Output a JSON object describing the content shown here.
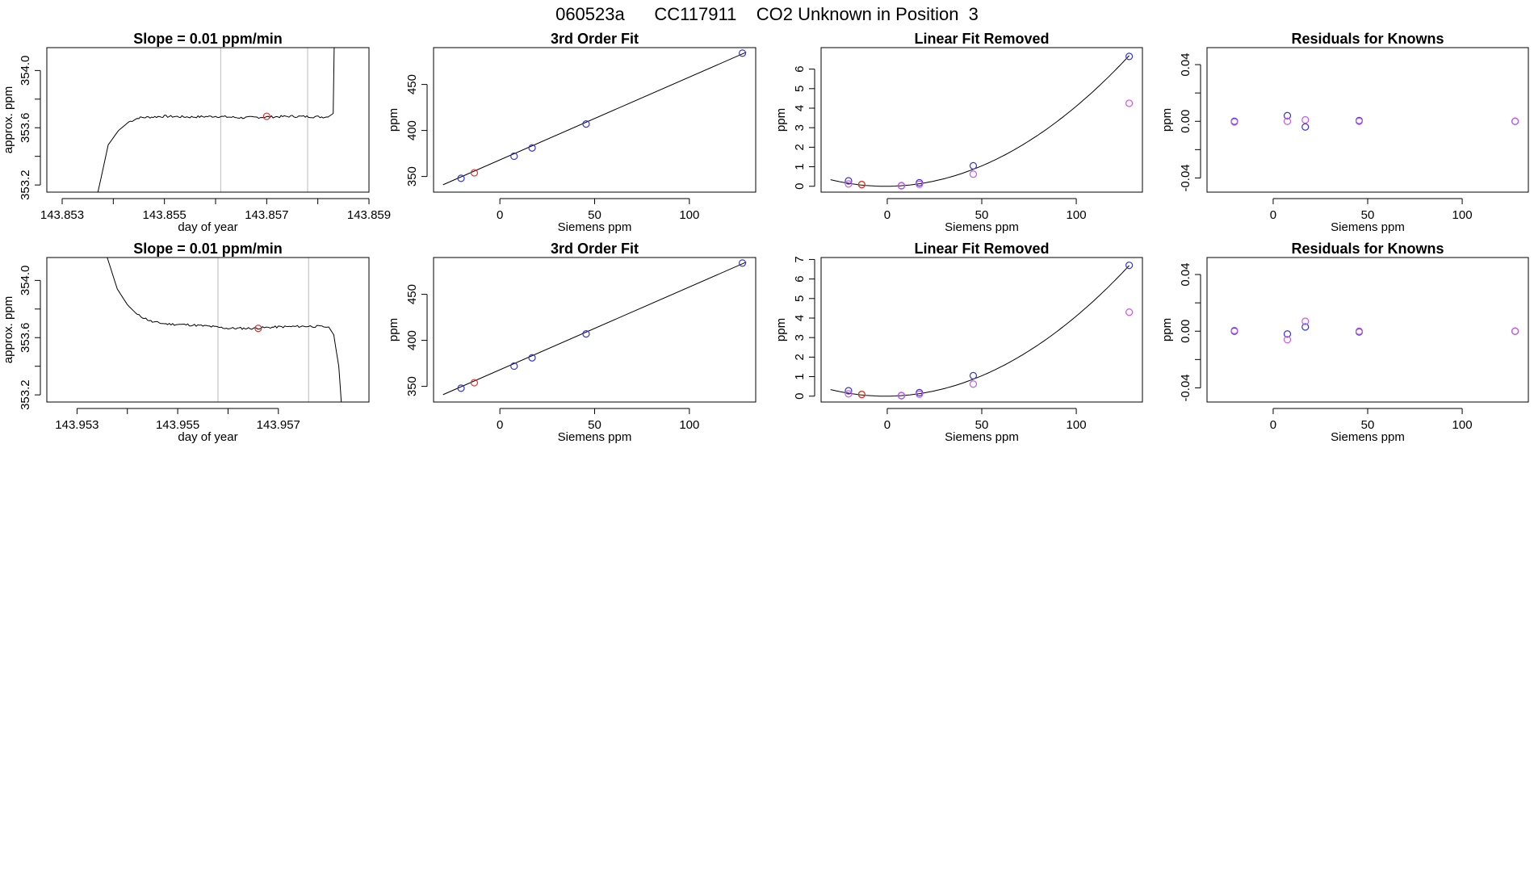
{
  "page_title": "060523a      CC117911    CO2 Unknown in Position  3",
  "colors": {
    "line": "#000000",
    "known_blue": "#3333dd",
    "unknown_red": "#e03030",
    "known_magenta": "#cc55ee",
    "unknown_orange": "#d08020",
    "vline": "#bbbbbb"
  },
  "chart_data": [
    {
      "type": "line",
      "title": "Slope =  0.01  ppm/min",
      "xlabel": "day of year",
      "ylabel": "approx. ppm",
      "xlim": [
        143.8527,
        143.859
      ],
      "ylim": [
        353.15,
        354.16
      ],
      "xticks": [
        143.853,
        143.855,
        143.857,
        143.859
      ],
      "xtick_labels": [
        "143.853",
        "143.855",
        "143.857",
        "143.859"
      ],
      "xticks_minor": [
        143.854,
        143.856,
        143.858
      ],
      "yticks": [
        353.2,
        353.6,
        354.0
      ],
      "ytick_labels": [
        "353.2",
        "353.6",
        "354.0"
      ],
      "yticks_minor": [
        353.4,
        353.8
      ],
      "vlines": [
        143.8561,
        143.8578
      ],
      "trace_points": [
        [
          143.8537,
          353.15
        ],
        [
          143.8539,
          353.48
        ],
        [
          143.8541,
          353.58
        ],
        [
          143.8543,
          353.64
        ],
        [
          143.8545,
          353.67
        ],
        [
          143.855,
          353.68
        ],
        [
          143.8555,
          353.675
        ],
        [
          143.856,
          353.68
        ],
        [
          143.8565,
          353.67
        ],
        [
          143.857,
          353.675
        ],
        [
          143.8575,
          353.68
        ],
        [
          143.8582,
          353.675
        ],
        [
          143.8583,
          353.7
        ],
        [
          143.85832,
          354.16
        ]
      ],
      "trace_noise": 0.008,
      "marker": {
        "x": 143.857,
        "y": 353.68,
        "color": "red"
      }
    },
    {
      "type": "scatter",
      "title": "3rd Order Fit",
      "xlabel": "Siemens ppm",
      "ylabel": "ppm",
      "xlim": [
        -35,
        135
      ],
      "ylim": [
        333,
        490
      ],
      "xticks": [
        0,
        50,
        100
      ],
      "yticks": [
        350,
        400,
        450
      ],
      "curve": [
        [
          -30,
          341
        ],
        [
          130,
          485
        ]
      ],
      "points": [
        {
          "x": -20.5,
          "y": 348,
          "color": "blue"
        },
        {
          "x": -13.5,
          "y": 354,
          "color": "red"
        },
        {
          "x": 7.5,
          "y": 372,
          "color": "blue"
        },
        {
          "x": 17,
          "y": 381,
          "color": "blue"
        },
        {
          "x": 45.5,
          "y": 407,
          "color": "blue"
        },
        {
          "x": 128,
          "y": 484,
          "color": "blue"
        }
      ]
    },
    {
      "type": "scatter",
      "title": "Linear Fit Removed",
      "xlabel": "Siemens ppm",
      "ylabel": "ppm",
      "xlim": [
        -35,
        135
      ],
      "ylim": [
        -0.3,
        7.1
      ],
      "xticks": [
        0,
        50,
        100
      ],
      "yticks": [
        0,
        1,
        2,
        3,
        4,
        5,
        6
      ],
      "curve_fn": [
        0.000402,
        0.0008,
        0.0
      ],
      "curve_range": [
        -30,
        128
      ],
      "points": [
        {
          "x": -20.5,
          "y": 0.28,
          "color": "blue"
        },
        {
          "x": -20.5,
          "y": 0.12,
          "color": "magenta"
        },
        {
          "x": -13.5,
          "y": 0.1,
          "color": "orange"
        },
        {
          "x": -13.5,
          "y": 0.08,
          "color": "red"
        },
        {
          "x": 7.5,
          "y": 0.03,
          "color": "blue"
        },
        {
          "x": 7.5,
          "y": 0.02,
          "color": "magenta"
        },
        {
          "x": 17,
          "y": 0.18,
          "color": "blue"
        },
        {
          "x": 17,
          "y": 0.1,
          "color": "magenta"
        },
        {
          "x": 45.5,
          "y": 1.05,
          "color": "blue"
        },
        {
          "x": 45.5,
          "y": 0.62,
          "color": "magenta"
        },
        {
          "x": 128,
          "y": 6.65,
          "color": "blue"
        },
        {
          "x": 128,
          "y": 4.25,
          "color": "magenta"
        }
      ]
    },
    {
      "type": "scatter",
      "title": "Residuals for Knowns",
      "xlabel": "Siemens ppm",
      "ylabel": "ppm",
      "xlim": [
        -35,
        135
      ],
      "ylim": [
        -0.05,
        0.052
      ],
      "xticks": [
        0,
        50,
        100
      ],
      "yticks": [
        -0.04,
        0.0,
        0.04
      ],
      "ytick_labels": [
        "-0.04",
        "0.00",
        "0.04"
      ],
      "yticks_minor": [
        -0.02,
        0.02
      ],
      "points": [
        {
          "x": -20.5,
          "y": 0.0,
          "color": "blue"
        },
        {
          "x": -20.5,
          "y": -0.0005,
          "color": "magenta"
        },
        {
          "x": 7.5,
          "y": 0.004,
          "color": "blue"
        },
        {
          "x": 7.5,
          "y": 0.0,
          "color": "magenta"
        },
        {
          "x": 17,
          "y": -0.004,
          "color": "blue"
        },
        {
          "x": 17,
          "y": 0.001,
          "color": "magenta"
        },
        {
          "x": 45.5,
          "y": 0.0005,
          "color": "blue"
        },
        {
          "x": 45.5,
          "y": 0.0,
          "color": "magenta"
        },
        {
          "x": 128,
          "y": 0.0,
          "color": "blue"
        },
        {
          "x": 128,
          "y": 0.0,
          "color": "magenta"
        }
      ]
    },
    {
      "type": "line",
      "title": "Slope =  0.01  ppm/min",
      "xlabel": "day of year",
      "ylabel": "approx. ppm",
      "xlim": [
        143.9524,
        143.9588
      ],
      "ylim": [
        353.15,
        354.16
      ],
      "xticks": [
        143.953,
        143.955,
        143.957
      ],
      "xtick_labels": [
        "143.953",
        "143.955",
        "143.957"
      ],
      "xticks_minor": [
        143.954,
        143.956
      ],
      "yticks": [
        353.2,
        353.6,
        354.0
      ],
      "ytick_labels": [
        "353.2",
        "353.6",
        "354.0"
      ],
      "yticks_minor": [
        353.4,
        353.8
      ],
      "vlines": [
        143.9558,
        143.9576
      ],
      "trace_points": [
        [
          143.9536,
          354.16
        ],
        [
          143.9537,
          354.05
        ],
        [
          143.9538,
          353.94
        ],
        [
          143.954,
          353.83
        ],
        [
          143.9542,
          353.76
        ],
        [
          143.9545,
          353.71
        ],
        [
          143.9548,
          353.695
        ],
        [
          143.9552,
          353.69
        ],
        [
          143.9556,
          353.68
        ],
        [
          143.956,
          353.665
        ],
        [
          143.9565,
          353.665
        ],
        [
          143.957,
          353.675
        ],
        [
          143.9576,
          353.68
        ],
        [
          143.958,
          353.675
        ],
        [
          143.9581,
          353.62
        ],
        [
          143.9582,
          353.4
        ],
        [
          143.95825,
          353.15
        ]
      ],
      "trace_noise": 0.008,
      "marker": {
        "x": 143.9566,
        "y": 353.665,
        "color": "red"
      }
    },
    {
      "type": "scatter",
      "title": "3rd Order Fit",
      "xlabel": "Siemens ppm",
      "ylabel": "ppm",
      "xlim": [
        -35,
        135
      ],
      "ylim": [
        333,
        490
      ],
      "xticks": [
        0,
        50,
        100
      ],
      "yticks": [
        350,
        400,
        450
      ],
      "curve": [
        [
          -30,
          341
        ],
        [
          130,
          485
        ]
      ],
      "points": [
        {
          "x": -20.5,
          "y": 348,
          "color": "blue"
        },
        {
          "x": -13.5,
          "y": 354,
          "color": "red"
        },
        {
          "x": 7.5,
          "y": 372,
          "color": "blue"
        },
        {
          "x": 17,
          "y": 381,
          "color": "blue"
        },
        {
          "x": 45.5,
          "y": 407,
          "color": "blue"
        },
        {
          "x": 128,
          "y": 484,
          "color": "blue"
        }
      ]
    },
    {
      "type": "scatter",
      "title": "Linear Fit Removed",
      "xlabel": "Siemens ppm",
      "ylabel": "ppm",
      "xlim": [
        -35,
        135
      ],
      "ylim": [
        -0.3,
        7.1
      ],
      "xticks": [
        0,
        50,
        100
      ],
      "yticks": [
        0,
        1,
        2,
        3,
        4,
        5,
        6,
        7
      ],
      "curve_fn": [
        0.000402,
        0.0008,
        0.0
      ],
      "curve_range": [
        -30,
        128
      ],
      "points": [
        {
          "x": -20.5,
          "y": 0.28,
          "color": "blue"
        },
        {
          "x": -20.5,
          "y": 0.12,
          "color": "magenta"
        },
        {
          "x": -13.5,
          "y": 0.1,
          "color": "orange"
        },
        {
          "x": -13.5,
          "y": 0.08,
          "color": "red"
        },
        {
          "x": 7.5,
          "y": 0.03,
          "color": "blue"
        },
        {
          "x": 7.5,
          "y": 0.02,
          "color": "magenta"
        },
        {
          "x": 17,
          "y": 0.18,
          "color": "blue"
        },
        {
          "x": 17,
          "y": 0.1,
          "color": "magenta"
        },
        {
          "x": 45.5,
          "y": 1.05,
          "color": "blue"
        },
        {
          "x": 45.5,
          "y": 0.62,
          "color": "magenta"
        },
        {
          "x": 128,
          "y": 6.7,
          "color": "blue"
        },
        {
          "x": 128,
          "y": 4.3,
          "color": "magenta"
        }
      ]
    },
    {
      "type": "scatter",
      "title": "Residuals for Knowns",
      "xlabel": "Siemens ppm",
      "ylabel": "ppm",
      "xlim": [
        -35,
        135
      ],
      "ylim": [
        -0.05,
        0.052
      ],
      "xticks": [
        0,
        50,
        100
      ],
      "yticks": [
        -0.04,
        0.0,
        0.04
      ],
      "ytick_labels": [
        "-0.04",
        "0.00",
        "0.04"
      ],
      "yticks_minor": [
        -0.02,
        0.02
      ],
      "points": [
        {
          "x": -20.5,
          "y": 0.0,
          "color": "blue"
        },
        {
          "x": -20.5,
          "y": 0.0005,
          "color": "magenta"
        },
        {
          "x": 7.5,
          "y": -0.002,
          "color": "blue"
        },
        {
          "x": 7.5,
          "y": -0.006,
          "color": "magenta"
        },
        {
          "x": 17,
          "y": 0.003,
          "color": "blue"
        },
        {
          "x": 17,
          "y": 0.007,
          "color": "magenta"
        },
        {
          "x": 45.5,
          "y": -0.0005,
          "color": "blue"
        },
        {
          "x": 45.5,
          "y": 0.0,
          "color": "magenta"
        },
        {
          "x": 128,
          "y": 0.0,
          "color": "blue"
        },
        {
          "x": 128,
          "y": 0.0,
          "color": "magenta"
        }
      ]
    }
  ]
}
